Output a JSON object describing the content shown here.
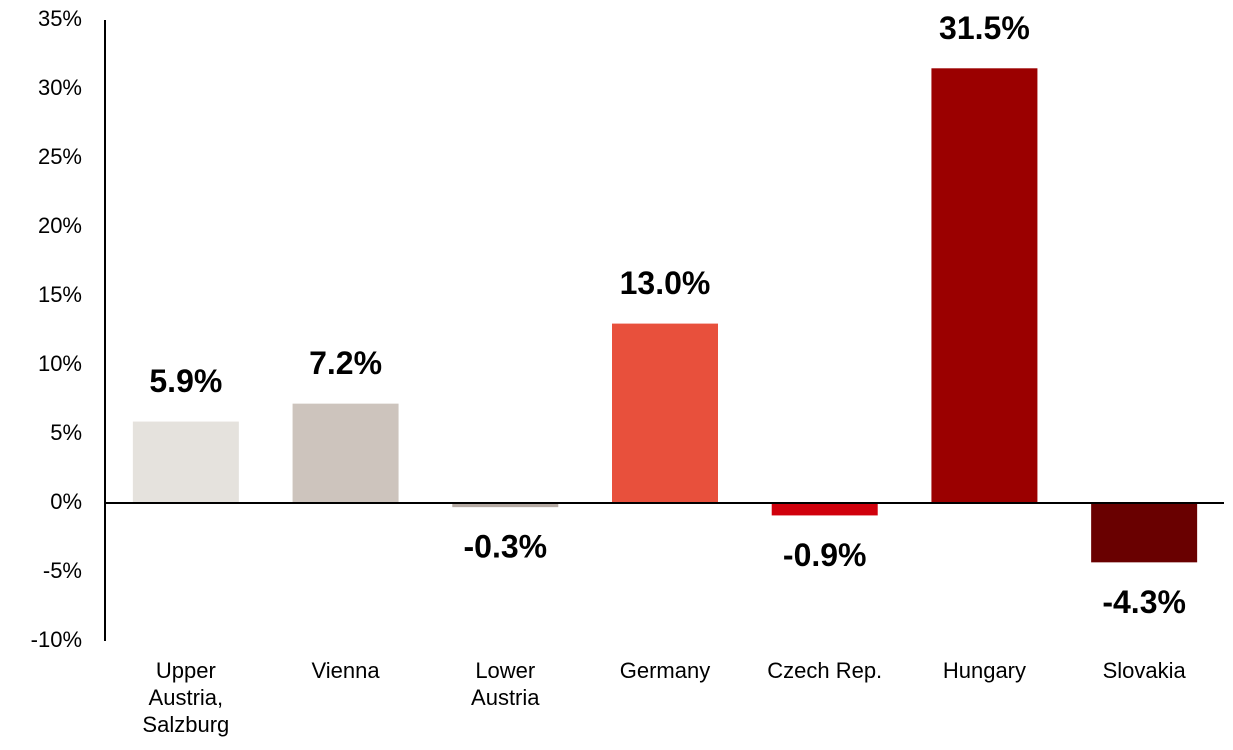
{
  "chart_data": {
    "type": "bar",
    "categories": [
      "Upper\nAustria,\nSalzburg",
      "Vienna",
      "Lower\nAustria",
      "Germany",
      "Czech Rep.",
      "Hungary",
      "Slovakia"
    ],
    "values": [
      5.9,
      7.2,
      -0.3,
      13.0,
      -0.9,
      31.5,
      -4.3
    ],
    "value_labels": [
      "5.9%",
      "7.2%",
      "-0.3%",
      "13.0%",
      "-0.9%",
      "31.5%",
      "-4.3%"
    ],
    "colors": [
      "#e5e2dd",
      "#cdc4bd",
      "#b5aaa3",
      "#e8503c",
      "#d0000c",
      "#9b0000",
      "#690000"
    ],
    "ylim": [
      -10,
      35
    ],
    "yticks": [
      {
        "value": 35,
        "label": "35%"
      },
      {
        "value": 30,
        "label": "30%"
      },
      {
        "value": 25,
        "label": "25%"
      },
      {
        "value": 20,
        "label": "20%"
      },
      {
        "value": 15,
        "label": "15%"
      },
      {
        "value": 10,
        "label": "10%"
      },
      {
        "value": 5,
        "label": "5%"
      },
      {
        "value": 0,
        "label": "0%"
      },
      {
        "value": -5,
        "label": "-5%"
      },
      {
        "value": -10,
        "label": "-10%"
      }
    ],
    "grid": false
  }
}
